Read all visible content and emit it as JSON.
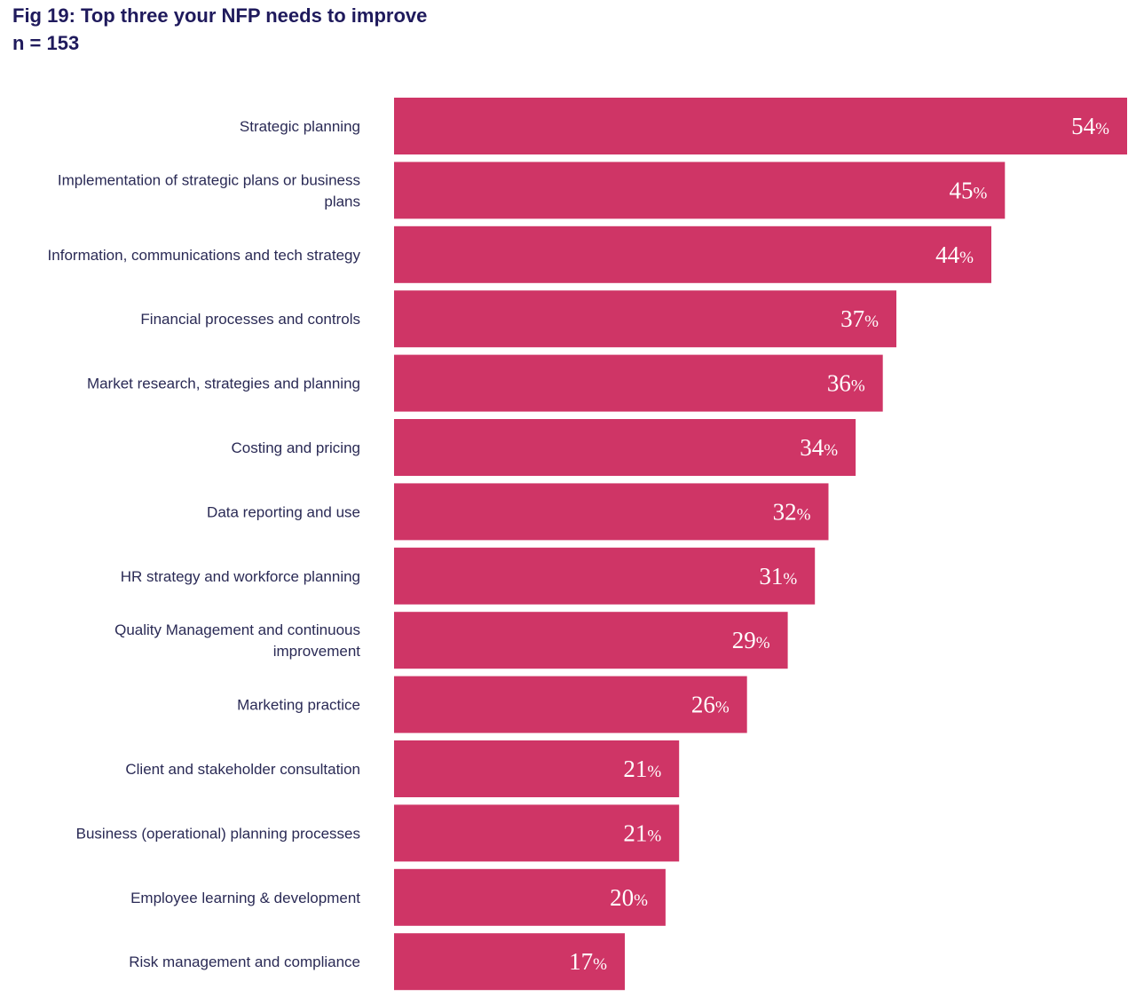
{
  "chart_data": {
    "type": "bar",
    "orientation": "horizontal",
    "title": "Fig 19: Top three your NFP needs to improve",
    "subtitle": "n = 153",
    "categories": [
      "Strategic planning",
      "Implementation of strategic plans or business plans",
      "Information, communications and tech strategy",
      "Financial processes and controls",
      "Market research, strategies and planning",
      "Costing and pricing",
      "Data reporting and use",
      "HR strategy and workforce planning",
      "Quality Management and continuous improvement",
      "Marketing practice",
      "Client and stakeholder consultation",
      "Business (operational) planning processes",
      "Employee learning & development",
      "Risk management and compliance"
    ],
    "category_lines": [
      [
        "Strategic planning"
      ],
      [
        "Implementation of strategic plans or business",
        "plans"
      ],
      [
        "Information, communications and tech strategy"
      ],
      [
        "Financial processes and controls"
      ],
      [
        "Market research, strategies and planning"
      ],
      [
        "Costing and pricing"
      ],
      [
        "Data reporting and use"
      ],
      [
        "HR strategy and workforce planning"
      ],
      [
        "Quality Management and continuous",
        "improvement"
      ],
      [
        "Marketing practice"
      ],
      [
        "Client and stakeholder consultation"
      ],
      [
        "Business (operational) planning processes"
      ],
      [
        "Employee learning & development"
      ],
      [
        "Risk management and compliance"
      ]
    ],
    "values": [
      54,
      45,
      44,
      37,
      36,
      34,
      32,
      31,
      29,
      26,
      21,
      21,
      20,
      17
    ],
    "value_suffix": "%",
    "xlim": [
      0,
      54
    ],
    "grid": false,
    "legend": false,
    "bar_color": "#cf3566",
    "label_color": "#ffffff"
  },
  "colors": {
    "title": "#1f1a5c",
    "category_text": "#2a2a55",
    "bar": "#cf3566"
  }
}
